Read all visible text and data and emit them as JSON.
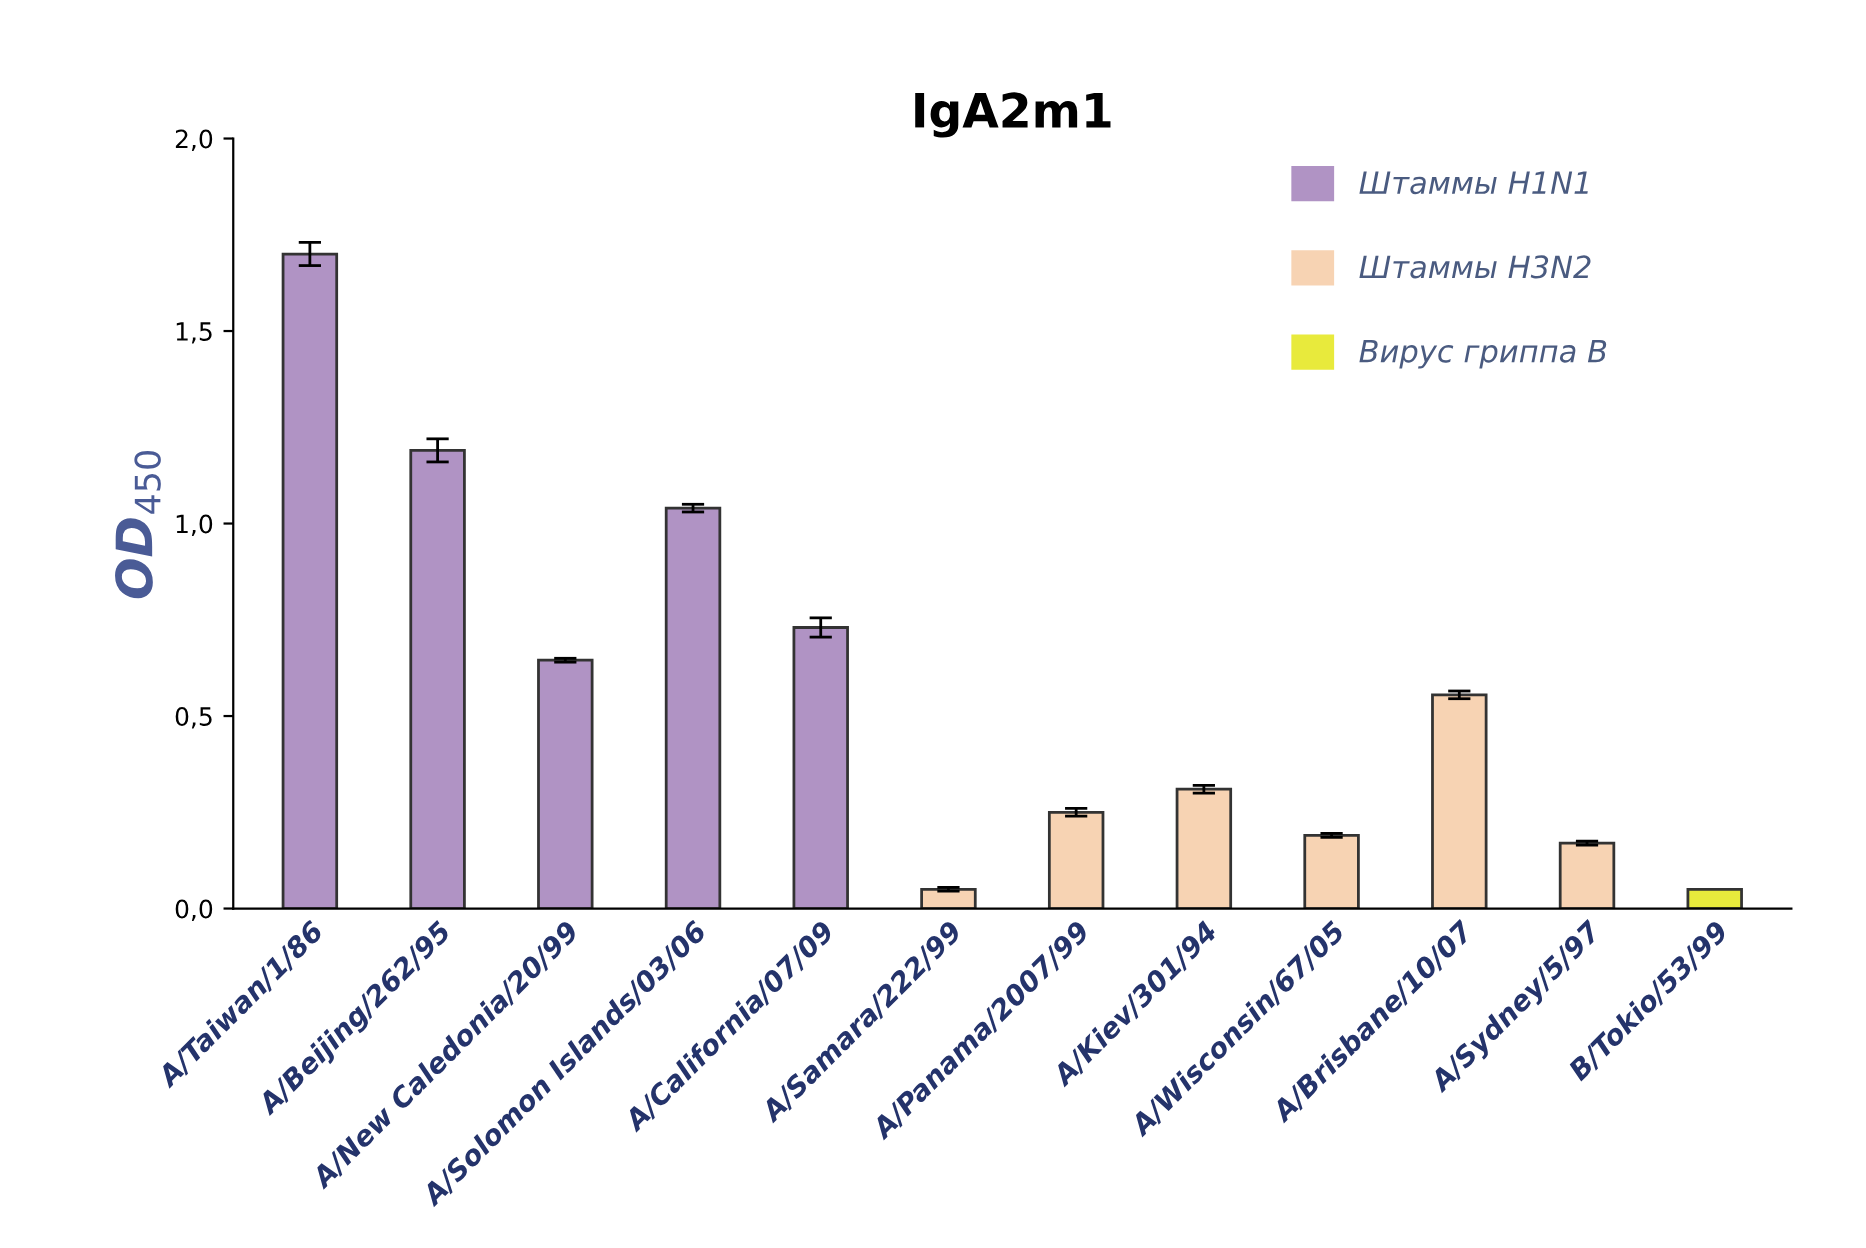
{
  "chart_data": {
    "type": "bar",
    "title": "IgA2m1",
    "ylabel": "OD$_{450}$",
    "categories": [
      "A/Taiwan/1/86",
      "A/Beijing/262/95",
      "A/New Caledonia/20/99",
      "A/Solomon Islands/03/06",
      "A/California/07/09",
      "A/Samara/222/99",
      "A/Panama/2007/99",
      "A/Kiev/301/94",
      "A/Wisconsin/67/05",
      "A/Brisbane/10/07",
      "A/Sydney/5/97",
      "B/Tokio/53/99"
    ],
    "series": [
      {
        "name": "Штаммы H1N1",
        "color": "#b093c4",
        "values": [
          1.7,
          1.19,
          0.645,
          1.04,
          0.73,
          null,
          null,
          null,
          null,
          null,
          null,
          null
        ],
        "errors": [
          0.03,
          0.03,
          0.005,
          0.01,
          0.025,
          null,
          null,
          null,
          null,
          null,
          null,
          null
        ]
      },
      {
        "name": "Штаммы H3N2",
        "color": "#f7d3b3",
        "values": [
          null,
          null,
          null,
          null,
          null,
          0.05,
          0.25,
          0.31,
          0.19,
          0.555,
          0.17,
          null
        ],
        "errors": [
          null,
          null,
          null,
          null,
          null,
          0.005,
          0.01,
          0.01,
          0.005,
          0.01,
          0.005,
          null
        ]
      },
      {
        "name": "Вирус гриппа B",
        "color": "#e8ea3c",
        "values": [
          null,
          null,
          null,
          null,
          null,
          null,
          null,
          null,
          null,
          null,
          null,
          0.05
        ]
      }
    ],
    "ylim": [
      0,
      2.0
    ],
    "yticks": [
      {
        "value": 0,
        "label": "0,0"
      },
      {
        "value": 0.5,
        "label": "0,5"
      },
      {
        "value": 1.0,
        "label": "1,0"
      },
      {
        "value": 1.5,
        "label": "1,5"
      },
      {
        "value": 2.0,
        "label": "2,0"
      }
    ],
    "legend": "top right",
    "grid": false
  }
}
